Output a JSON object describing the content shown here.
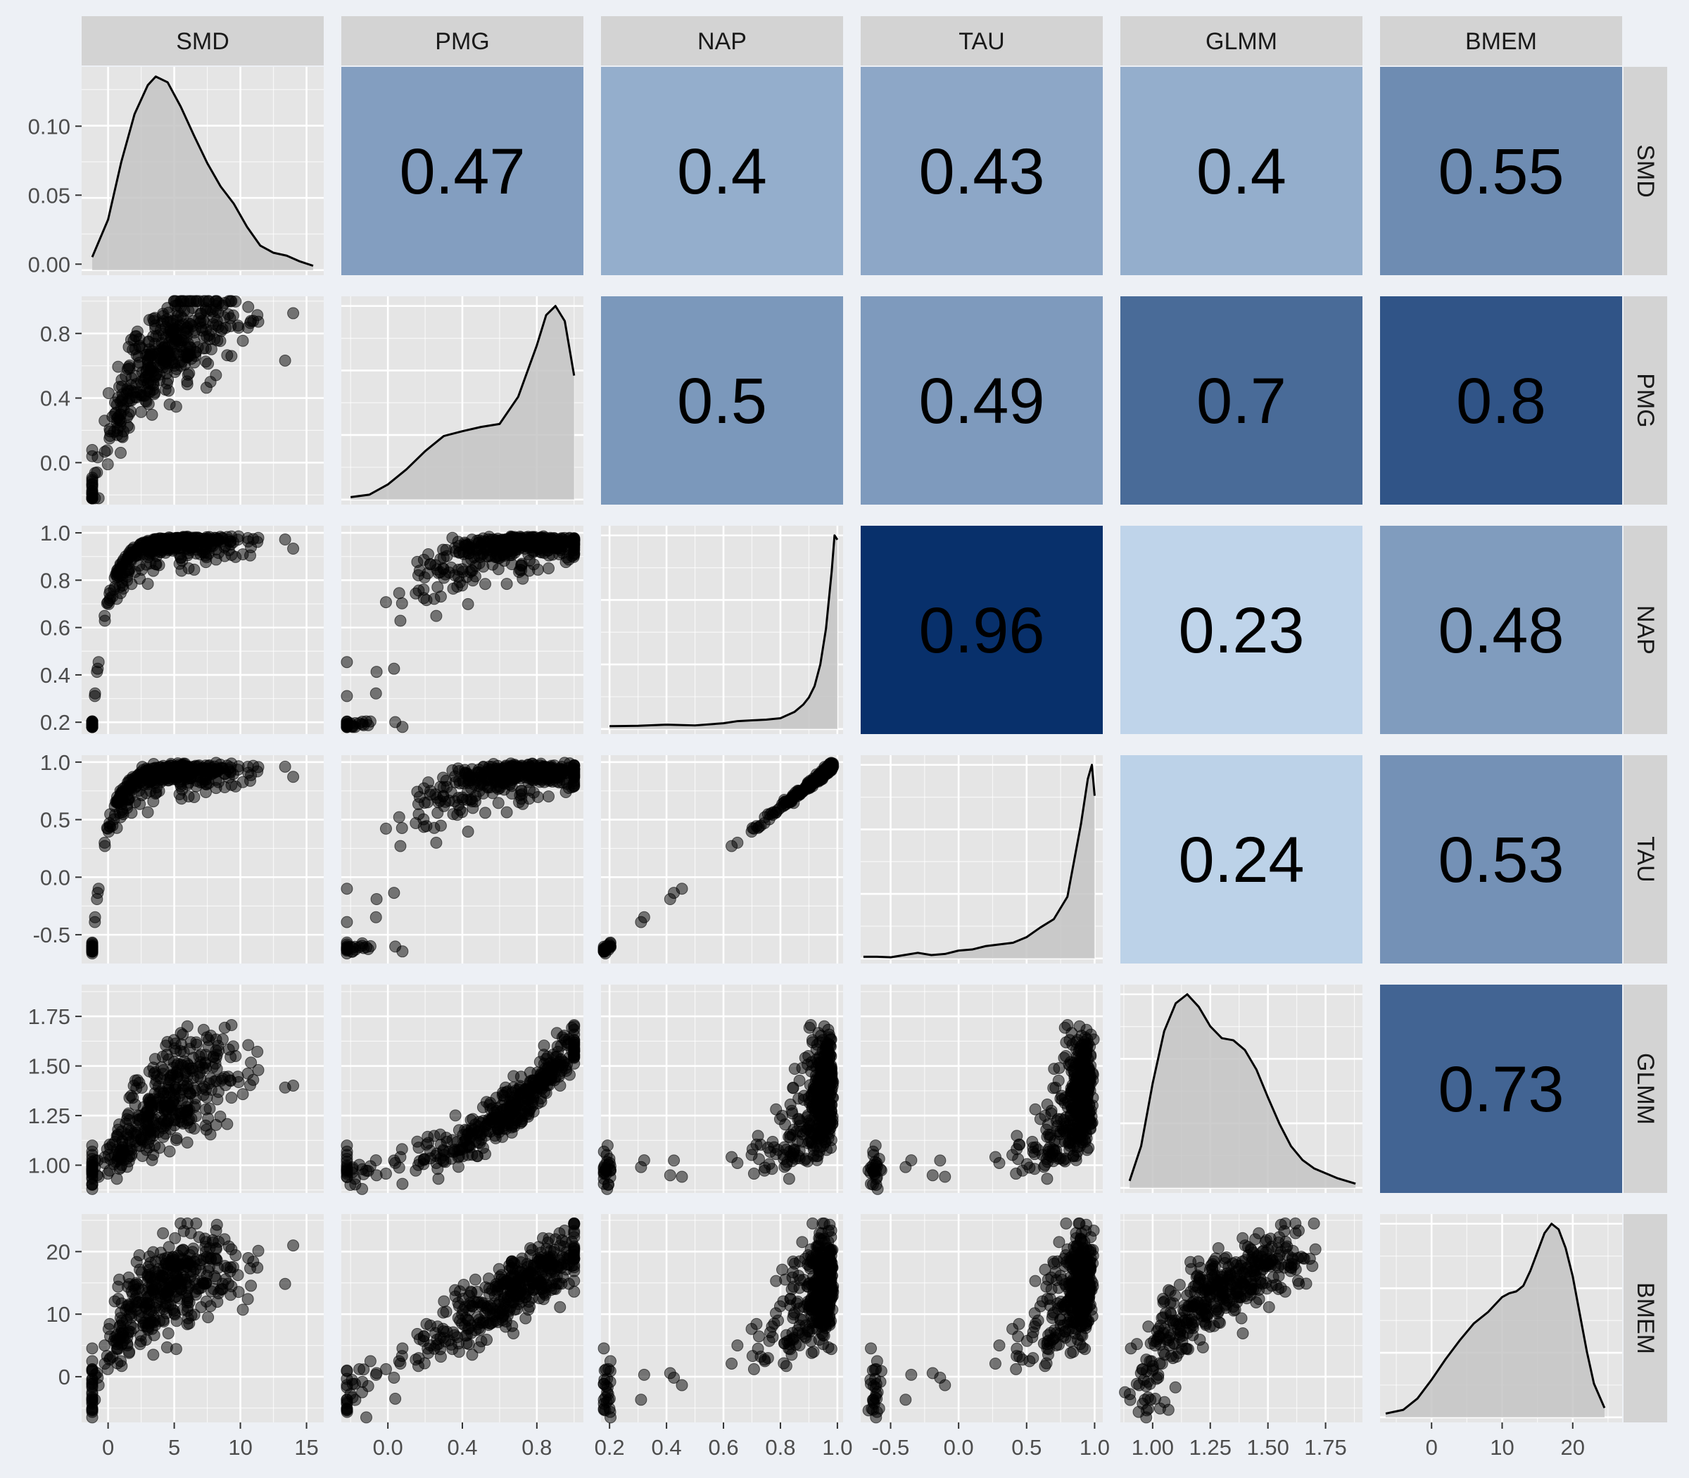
{
  "chart_data": {
    "type": "scatter-matrix",
    "variables": [
      "SMD",
      "PMG",
      "NAP",
      "TAU",
      "GLMM",
      "BMEM"
    ],
    "correlations": [
      {
        "row": "SMD",
        "col": "PMG",
        "value": "0.47"
      },
      {
        "row": "SMD",
        "col": "NAP",
        "value": "0.4"
      },
      {
        "row": "SMD",
        "col": "TAU",
        "value": "0.43"
      },
      {
        "row": "SMD",
        "col": "GLMM",
        "value": "0.4"
      },
      {
        "row": "SMD",
        "col": "BMEM",
        "value": "0.55"
      },
      {
        "row": "PMG",
        "col": "NAP",
        "value": "0.5"
      },
      {
        "row": "PMG",
        "col": "TAU",
        "value": "0.49"
      },
      {
        "row": "PMG",
        "col": "GLMM",
        "value": "0.7"
      },
      {
        "row": "PMG",
        "col": "BMEM",
        "value": "0.8"
      },
      {
        "row": "NAP",
        "col": "TAU",
        "value": "0.96"
      },
      {
        "row": "NAP",
        "col": "GLMM",
        "value": "0.23"
      },
      {
        "row": "NAP",
        "col": "BMEM",
        "value": "0.48"
      },
      {
        "row": "TAU",
        "col": "GLMM",
        "value": "0.24"
      },
      {
        "row": "TAU",
        "col": "BMEM",
        "value": "0.53"
      },
      {
        "row": "GLMM",
        "col": "BMEM",
        "value": "0.73"
      }
    ],
    "x_axis_ranges": {
      "SMD": [
        -2,
        16.3
      ],
      "PMG": [
        -0.25,
        1.05
      ],
      "NAP": [
        0.17,
        1.02
      ],
      "TAU": [
        -0.72,
        1.06
      ],
      "GLMM": [
        0.86,
        1.91
      ],
      "BMEM": [
        -7.3,
        27
      ]
    },
    "x_ticks": {
      "SMD": {
        "values": [
          0,
          5,
          10,
          15
        ],
        "labels": [
          "0",
          "5",
          "10",
          "15"
        ]
      },
      "PMG": {
        "values": [
          0.0,
          0.4,
          0.8
        ],
        "labels": [
          "0.0",
          "0.4",
          "0.8"
        ]
      },
      "NAP": {
        "values": [
          0.2,
          0.4,
          0.6,
          0.8,
          1.0
        ],
        "labels": [
          "0.2",
          "0.4",
          "0.6",
          "0.8",
          "1.0"
        ]
      },
      "TAU": {
        "values": [
          -0.5,
          0.0,
          0.5,
          1.0
        ],
        "labels": [
          "-0.5",
          "0.0",
          "0.5",
          "1.0"
        ]
      },
      "GLMM": {
        "values": [
          1.0,
          1.25,
          1.5,
          1.75
        ],
        "labels": [
          "1.00",
          "1.25",
          "1.50",
          "1.75"
        ]
      },
      "BMEM": {
        "values": [
          0,
          10,
          20
        ],
        "labels": [
          "0",
          "10",
          "20"
        ]
      }
    },
    "y_axis_ranges": {
      "SMD": [
        -0.008,
        0.143
      ],
      "PMG": [
        -0.26,
        1.03
      ],
      "NAP": [
        0.15,
        1.03
      ],
      "TAU": [
        -0.75,
        1.06
      ],
      "GLMM": [
        0.86,
        1.91
      ],
      "BMEM": [
        -7.3,
        26
      ]
    },
    "y_ticks": {
      "SMD": {
        "values": [
          0.0,
          0.05,
          0.1
        ],
        "labels": [
          "0.00",
          "0.05",
          "0.10"
        ]
      },
      "PMG": {
        "values": [
          0.0,
          0.4,
          0.8
        ],
        "labels": [
          "0.0",
          "0.4",
          "0.8"
        ]
      },
      "NAP": {
        "values": [
          0.2,
          0.4,
          0.6,
          0.8,
          1.0
        ],
        "labels": [
          "0.2",
          "0.4",
          "0.6",
          "0.8",
          "1.0"
        ]
      },
      "TAU": {
        "values": [
          -0.5,
          0.0,
          0.5,
          1.0
        ],
        "labels": [
          "-0.5",
          "0.0",
          "0.5",
          "1.0"
        ]
      },
      "GLMM": {
        "values": [
          1.0,
          1.25,
          1.5,
          1.75
        ],
        "labels": [
          "1.00",
          "1.25",
          "1.50",
          "1.75"
        ]
      },
      "BMEM": {
        "values": [
          0,
          10,
          20
        ],
        "labels": [
          "0",
          "10",
          "20"
        ]
      }
    },
    "densities": {
      "SMD": {
        "x": [
          -1.2,
          0,
          1,
          2,
          3,
          3.6,
          4.5,
          5.5,
          6.5,
          7.5,
          8.5,
          9.5,
          10.5,
          11.5,
          12.5,
          13.5,
          14.5,
          15.5
        ],
        "y": [
          0.009,
          0.035,
          0.075,
          0.108,
          0.128,
          0.134,
          0.13,
          0.113,
          0.093,
          0.074,
          0.058,
          0.046,
          0.03,
          0.017,
          0.012,
          0.01,
          0.006,
          0.003
        ]
      },
      "PMG": {
        "x": [
          -0.2,
          -0.1,
          0.0,
          0.1,
          0.2,
          0.3,
          0.4,
          0.5,
          0.6,
          0.7,
          0.8,
          0.85,
          0.9,
          0.95,
          1.0
        ],
        "y": [
          0.04,
          0.08,
          0.25,
          0.5,
          0.8,
          1.05,
          1.13,
          1.2,
          1.25,
          1.7,
          2.55,
          3.05,
          3.2,
          2.95,
          2.05
        ]
      },
      "NAP": {
        "x": [
          0.2,
          0.3,
          0.4,
          0.5,
          0.6,
          0.65,
          0.7,
          0.75,
          0.8,
          0.85,
          0.88,
          0.9,
          0.92,
          0.94,
          0.96,
          0.98,
          0.99,
          1.0
        ],
        "y": [
          0.2,
          0.22,
          0.3,
          0.25,
          0.4,
          0.55,
          0.6,
          0.65,
          0.75,
          1.2,
          1.7,
          2.2,
          3.0,
          4.5,
          7.0,
          11.0,
          13.5,
          13.2
        ]
      },
      "TAU": {
        "x": [
          -0.7,
          -0.6,
          -0.5,
          -0.4,
          -0.3,
          -0.2,
          -0.1,
          0.0,
          0.1,
          0.2,
          0.3,
          0.4,
          0.5,
          0.6,
          0.7,
          0.8,
          0.9,
          0.95,
          0.98,
          1.0
        ],
        "y": [
          0.03,
          0.03,
          0.02,
          0.06,
          0.1,
          0.06,
          0.08,
          0.14,
          0.16,
          0.22,
          0.25,
          0.28,
          0.38,
          0.55,
          0.7,
          1.1,
          2.4,
          3.2,
          3.45,
          2.9
        ]
      },
      "GLMM": {
        "x": [
          0.9,
          0.95,
          1.0,
          1.05,
          1.1,
          1.15,
          1.2,
          1.25,
          1.3,
          1.35,
          1.4,
          1.45,
          1.5,
          1.55,
          1.6,
          1.65,
          1.7,
          1.8,
          1.88
        ],
        "y": [
          0.1,
          0.6,
          1.5,
          2.25,
          2.65,
          2.78,
          2.6,
          2.32,
          2.15,
          2.12,
          1.98,
          1.7,
          1.3,
          0.92,
          0.6,
          0.4,
          0.28,
          0.14,
          0.06
        ]
      },
      "BMEM": {
        "x": [
          -6.5,
          -4,
          -2,
          0,
          2,
          4,
          6,
          8,
          10,
          11,
          12,
          13,
          14,
          15,
          16,
          17,
          18,
          19,
          20,
          21,
          22,
          23,
          24.5
        ],
        "y": [
          0.002,
          0.004,
          0.01,
          0.02,
          0.031,
          0.041,
          0.05,
          0.056,
          0.064,
          0.066,
          0.067,
          0.07,
          0.078,
          0.088,
          0.098,
          0.103,
          0.1,
          0.09,
          0.075,
          0.055,
          0.035,
          0.018,
          0.005
        ]
      }
    }
  },
  "colors": {
    "panel_background": "#e5e5e5",
    "grid_major": "#ffffff",
    "strip_background": "#d3d3d3",
    "density_fill": "#c4c4c4",
    "point_color": "#000000",
    "correlation_low": "#c6dbef",
    "correlation_high": "#08306b"
  }
}
